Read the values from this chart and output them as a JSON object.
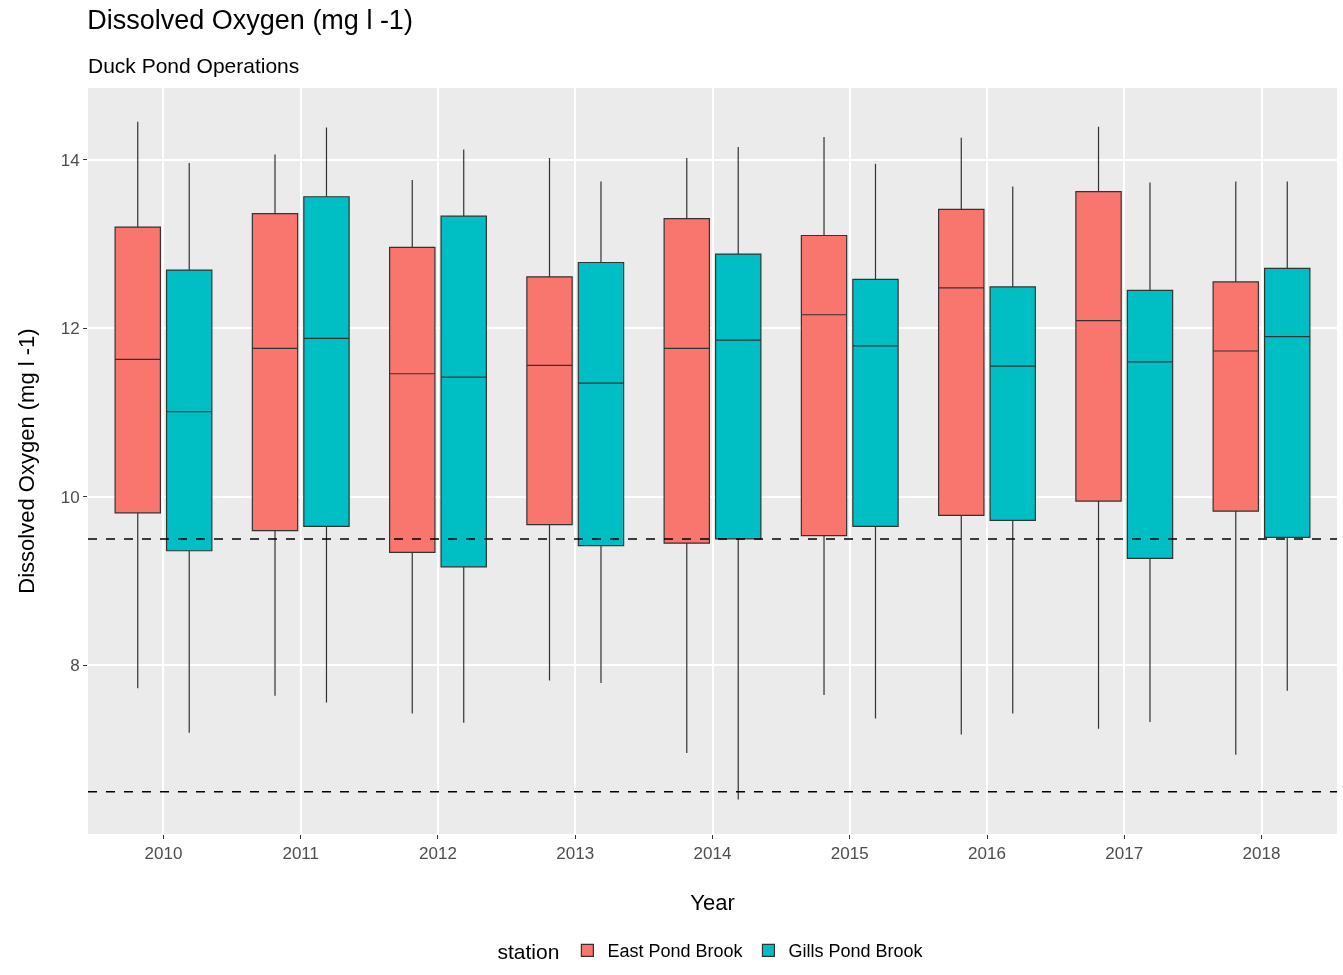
{
  "chart_data": {
    "type": "box",
    "title": "Dissolved Oxygen (mg l -1)",
    "subtitle": "Duck Pond Operations",
    "xlabel": "Year",
    "ylabel": "Dissolved Oxygen (mg l -1)",
    "legend_title": "station",
    "legend": "bottom",
    "grid": true,
    "categories": [
      "2010",
      "2011",
      "2012",
      "2013",
      "2014",
      "2015",
      "2016",
      "2017",
      "2018"
    ],
    "ylim": [
      6.0,
      14.85
    ],
    "yticks": [
      8,
      10,
      12,
      14
    ],
    "ref_lines": [
      {
        "axis": "y",
        "value": 9.5,
        "line_style": "dashed",
        "color": "#000000"
      },
      {
        "axis": "y",
        "value": 6.5,
        "line_style": "dashed",
        "color": "#000000"
      }
    ],
    "series": [
      {
        "name": "East Pond Brook",
        "color": "#f8766d",
        "boxes": [
          {
            "low": 7.73,
            "q1": 9.81,
            "median": 11.63,
            "q3": 13.2,
            "high": 14.45
          },
          {
            "low": 7.64,
            "q1": 9.6,
            "median": 11.76,
            "q3": 13.36,
            "high": 14.06
          },
          {
            "low": 7.43,
            "q1": 9.34,
            "median": 11.46,
            "q3": 12.96,
            "high": 13.76
          },
          {
            "low": 7.82,
            "q1": 9.67,
            "median": 11.56,
            "q3": 12.61,
            "high": 14.02
          },
          {
            "low": 6.96,
            "q1": 9.45,
            "median": 11.76,
            "q3": 13.3,
            "high": 14.02
          },
          {
            "low": 7.65,
            "q1": 9.54,
            "median": 12.16,
            "q3": 13.1,
            "high": 14.27
          },
          {
            "low": 7.18,
            "q1": 9.78,
            "median": 12.48,
            "q3": 13.41,
            "high": 14.26
          },
          {
            "low": 7.25,
            "q1": 9.95,
            "median": 12.09,
            "q3": 13.62,
            "high": 14.39
          },
          {
            "low": 6.94,
            "q1": 9.83,
            "median": 11.73,
            "q3": 12.55,
            "high": 13.74
          }
        ]
      },
      {
        "name": "Gills Pond Brook",
        "color": "#00bfc4",
        "boxes": [
          {
            "low": 7.2,
            "q1": 9.36,
            "median": 11.01,
            "q3": 12.69,
            "high": 13.96
          },
          {
            "low": 7.56,
            "q1": 9.65,
            "median": 11.88,
            "q3": 13.56,
            "high": 14.38
          },
          {
            "low": 7.32,
            "q1": 9.17,
            "median": 11.42,
            "q3": 13.33,
            "high": 14.12
          },
          {
            "low": 7.79,
            "q1": 9.42,
            "median": 11.35,
            "q3": 12.78,
            "high": 13.74
          },
          {
            "low": 6.41,
            "q1": 9.5,
            "median": 11.86,
            "q3": 12.88,
            "high": 14.15
          },
          {
            "low": 7.37,
            "q1": 9.65,
            "median": 11.79,
            "q3": 12.58,
            "high": 13.95
          },
          {
            "low": 7.43,
            "q1": 9.72,
            "median": 11.55,
            "q3": 12.49,
            "high": 13.68
          },
          {
            "low": 7.33,
            "q1": 9.27,
            "median": 11.6,
            "q3": 12.45,
            "high": 13.73
          },
          {
            "low": 7.7,
            "q1": 9.52,
            "median": 11.9,
            "q3": 12.71,
            "high": 13.74
          }
        ]
      }
    ]
  }
}
